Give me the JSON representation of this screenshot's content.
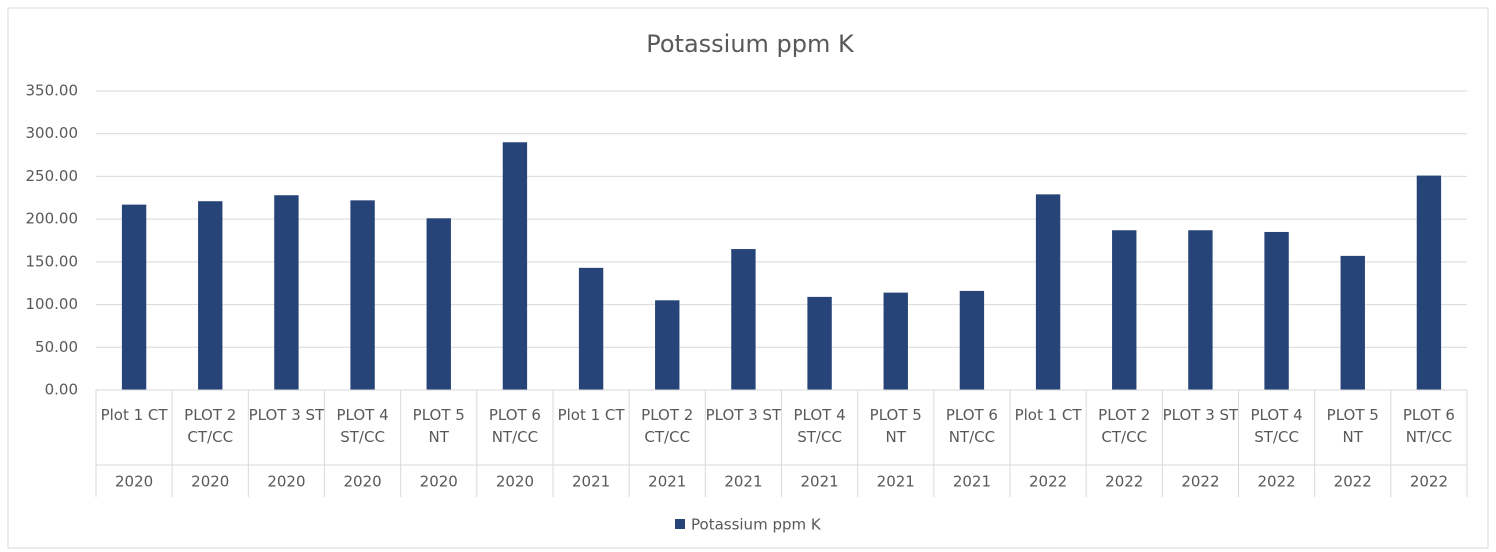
{
  "chart_data": {
    "type": "bar",
    "title": "Potassium ppm K",
    "categories": [
      "Plot 1 CT",
      "PLOT 2 CT/CC",
      "PLOT 3 ST",
      "PLOT 4 ST/CC",
      "PLOT 5 NT",
      "PLOT 6 NT/CC",
      "Plot 1 CT",
      "PLOT 2 CT/CC",
      "PLOT 3 ST",
      "PLOT 4 ST/CC",
      "PLOT 5 NT",
      "PLOT 6 NT/CC",
      "Plot 1 CT",
      "PLOT 2 CT/CC",
      "PLOT 3 ST",
      "PLOT 4 ST/CC",
      "PLOT 5 NT",
      "PLOT 6 NT/CC"
    ],
    "groups": [
      "2020",
      "2020",
      "2020",
      "2020",
      "2020",
      "2020",
      "2021",
      "2021",
      "2021",
      "2021",
      "2021",
      "2021",
      "2022",
      "2022",
      "2022",
      "2022",
      "2022",
      "2022"
    ],
    "series": [
      {
        "name": "Potassium ppm K",
        "color": "#264478",
        "values": [
          217,
          221,
          228,
          222,
          201,
          290,
          143,
          105,
          165,
          109,
          114,
          116,
          229,
          187,
          187,
          185,
          157,
          251
        ]
      }
    ],
    "ylim": [
      0,
      350
    ],
    "yticks": [
      {
        "value": 0,
        "label": "0.00"
      },
      {
        "value": 50,
        "label": "50.00"
      },
      {
        "value": 100,
        "label": "100.00"
      },
      {
        "value": 150,
        "label": "150.00"
      },
      {
        "value": 200,
        "label": "200.00"
      },
      {
        "value": 250,
        "label": "250.00"
      },
      {
        "value": 300,
        "label": "300.00"
      },
      {
        "value": 350,
        "label": "350.00"
      }
    ],
    "grid": true,
    "legend": "bottom"
  }
}
